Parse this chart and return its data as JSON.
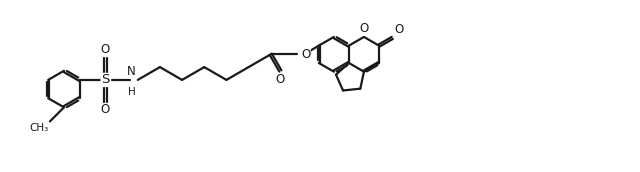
{
  "bg": "#ffffff",
  "lc": "#1a1a1a",
  "lw": 1.6,
  "figsize": [
    6.4,
    1.72
  ],
  "dpi": 100,
  "xlim": [
    0,
    10.5
  ],
  "ylim": [
    0,
    2.8
  ]
}
